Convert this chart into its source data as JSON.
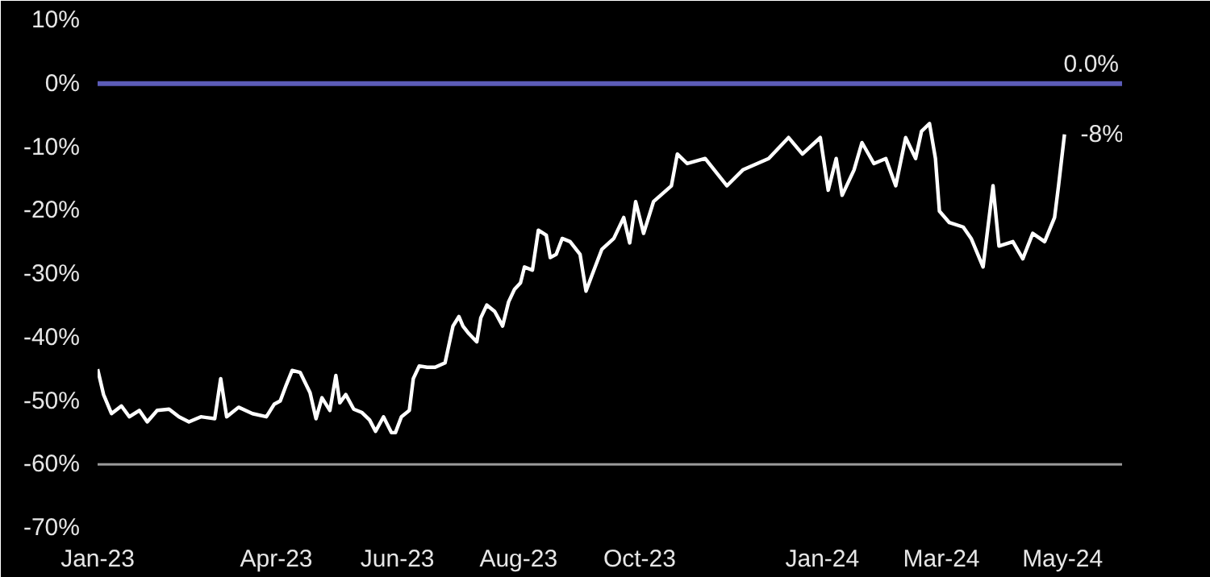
{
  "chart_data": {
    "type": "line",
    "x": [
      "2023-01-01",
      "2023-01-04",
      "2023-01-08",
      "2023-01-13",
      "2023-01-17",
      "2023-01-22",
      "2023-01-26",
      "2023-01-31",
      "2023-02-06",
      "2023-02-11",
      "2023-02-16",
      "2023-02-22",
      "2023-03-01",
      "2023-03-04",
      "2023-03-07",
      "2023-03-13",
      "2023-03-20",
      "2023-03-27",
      "2023-03-31",
      "2023-04-03",
      "2023-04-06",
      "2023-04-09",
      "2023-04-13",
      "2023-04-18",
      "2023-04-21",
      "2023-04-24",
      "2023-04-28",
      "2023-05-01",
      "2023-05-03",
      "2023-05-06",
      "2023-05-10",
      "2023-05-14",
      "2023-05-18",
      "2023-05-21",
      "2023-05-25",
      "2023-05-29",
      "2023-05-31",
      "2023-06-03",
      "2023-06-07",
      "2023-06-09",
      "2023-06-12",
      "2023-06-16",
      "2023-06-20",
      "2023-06-25",
      "2023-06-29",
      "2023-07-02",
      "2023-07-04",
      "2023-07-07",
      "2023-07-11",
      "2023-07-13",
      "2023-07-16",
      "2023-07-20",
      "2023-07-24",
      "2023-07-27",
      "2023-07-30",
      "2023-08-02",
      "2023-08-04",
      "2023-08-08",
      "2023-08-11",
      "2023-08-15",
      "2023-08-17",
      "2023-08-20",
      "2023-08-23",
      "2023-08-27",
      "2023-09-01",
      "2023-09-04",
      "2023-09-07",
      "2023-09-12",
      "2023-09-18",
      "2023-09-23",
      "2023-09-26",
      "2023-09-29",
      "2023-10-03",
      "2023-10-08",
      "2023-10-17",
      "2023-10-20",
      "2023-10-25",
      "2023-11-03",
      "2023-11-14",
      "2023-11-22",
      "2023-12-05",
      "2023-12-15",
      "2023-12-22",
      "2023-12-31",
      "2024-01-04",
      "2024-01-08",
      "2024-01-11",
      "2024-01-17",
      "2024-01-21",
      "2024-01-27",
      "2024-02-02",
      "2024-02-07",
      "2024-02-12",
      "2024-02-17",
      "2024-02-20",
      "2024-02-24",
      "2024-02-27",
      "2024-02-29",
      "2024-03-05",
      "2024-03-12",
      "2024-03-16",
      "2024-03-22",
      "2024-03-27",
      "2024-03-30",
      "2024-04-06",
      "2024-04-11",
      "2024-04-16",
      "2024-04-22",
      "2024-04-27",
      "2024-04-29",
      "2024-05-02"
    ],
    "series": [
      {
        "color": "#ffffff",
        "values": [
          -45.0,
          -49.0,
          -52.0,
          -50.8,
          -52.5,
          -51.5,
          -53.3,
          -51.5,
          -51.3,
          -52.5,
          -53.3,
          -52.5,
          -52.8,
          -46.5,
          -52.5,
          -51.0,
          -52.0,
          -52.5,
          -50.5,
          -50.0,
          -47.5,
          -45.2,
          -45.5,
          -48.7,
          -52.8,
          -49.5,
          -51.5,
          -46.0,
          -50.3,
          -49.0,
          -51.3,
          -51.8,
          -53.0,
          -54.8,
          -52.5,
          -55.0,
          -55.0,
          -52.5,
          -51.5,
          -46.5,
          -44.5,
          -44.7,
          -44.7,
          -44.0,
          -38.2,
          -36.7,
          -38.2,
          -39.4,
          -40.7,
          -36.9,
          -34.9,
          -35.9,
          -38.2,
          -34.4,
          -32.4,
          -31.4,
          -28.9,
          -29.4,
          -23.1,
          -23.9,
          -27.4,
          -26.9,
          -24.4,
          -24.9,
          -26.9,
          -32.7,
          -30.2,
          -26.1,
          -24.4,
          -21.1,
          -25.1,
          -18.6,
          -23.6,
          -18.6,
          -16.1,
          -11.1,
          -12.6,
          -11.8,
          -16.1,
          -13.6,
          -11.8,
          -8.5,
          -11.1,
          -8.5,
          -16.8,
          -11.8,
          -17.6,
          -13.6,
          -9.3,
          -12.6,
          -11.8,
          -16.1,
          -8.5,
          -11.8,
          -7.5,
          -6.3,
          -11.8,
          -20.1,
          -21.9,
          -22.6,
          -24.4,
          -28.9,
          -16.1,
          -25.6,
          -24.9,
          -27.6,
          -23.6,
          -24.9,
          -21.1,
          -16.1,
          -8
        ]
      }
    ],
    "xlim": [
      "2023-01-01",
      "2024-05-31"
    ],
    "xticks": [
      {
        "value": "2023-01-01",
        "label": "Jan-23"
      },
      {
        "value": "2023-04-01",
        "label": "Apr-23"
      },
      {
        "value": "2023-06-01",
        "label": "Jun-23"
      },
      {
        "value": "2023-08-01",
        "label": "Aug-23"
      },
      {
        "value": "2023-10-01",
        "label": "Oct-23"
      },
      {
        "value": "2024-01-01",
        "label": "Jan-24"
      },
      {
        "value": "2024-03-01",
        "label": "Mar-24"
      },
      {
        "value": "2024-05-01",
        "label": "May-24"
      }
    ],
    "ylim": [
      -70,
      10
    ],
    "yticks": [
      {
        "value": -70,
        "label": "-70%"
      },
      {
        "value": -60,
        "label": "-60%"
      },
      {
        "value": -50,
        "label": "-50%"
      },
      {
        "value": -40,
        "label": "-40%"
      },
      {
        "value": -30,
        "label": "-30%"
      },
      {
        "value": -20,
        "label": "-20%"
      },
      {
        "value": -10,
        "label": "-10%"
      },
      {
        "value": 0,
        "label": "0%"
      },
      {
        "value": 10,
        "label": "10%"
      }
    ],
    "ref_lines": [
      {
        "axis": "y",
        "value": 0,
        "label": "0.0%",
        "color": "#5c5cb8"
      },
      {
        "axis": "y",
        "value": -60,
        "color": "#9a9a9a"
      }
    ],
    "annotations": [
      {
        "text": "-8%",
        "x": "2024-05-02",
        "y": -8
      }
    ],
    "grid": false,
    "marker": "none",
    "line_style": "solid"
  }
}
